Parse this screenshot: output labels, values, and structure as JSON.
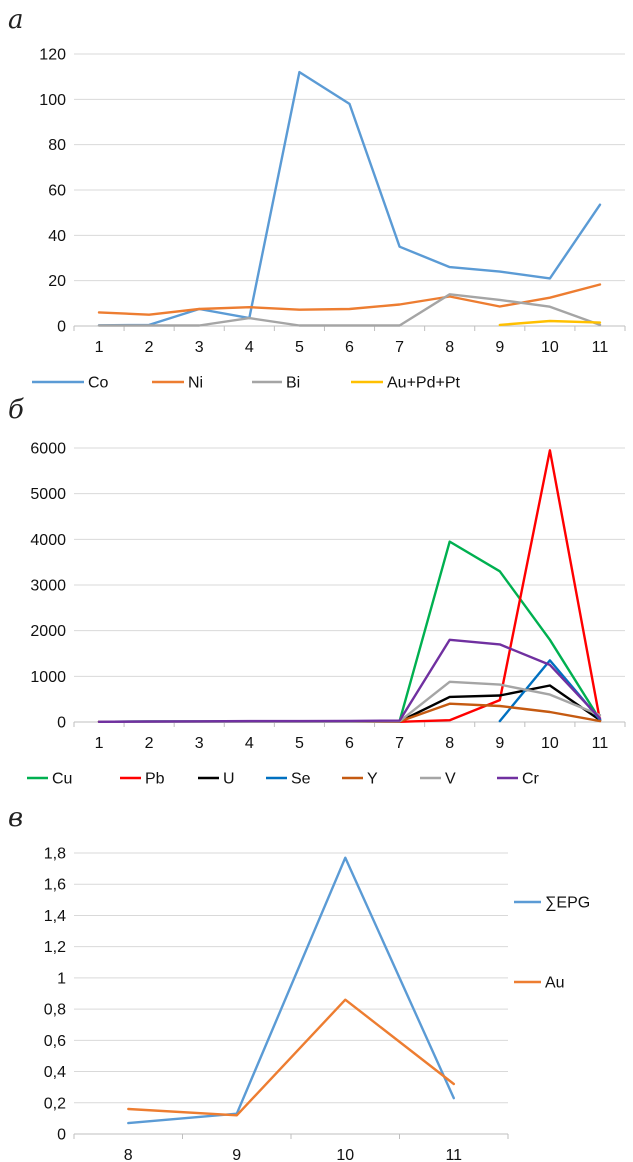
{
  "chart_data": [
    {
      "panel_label": "а",
      "type": "line",
      "categories": [
        "1",
        "2",
        "3",
        "4",
        "5",
        "6",
        "7",
        "8",
        "9",
        "10",
        "11"
      ],
      "ylim": [
        0,
        120
      ],
      "yticks": [
        "0",
        "20",
        "40",
        "60",
        "80",
        "100",
        "120"
      ],
      "grid": true,
      "legend_position": "bottom",
      "series": [
        {
          "name": "Co",
          "color": "#5B9BD5",
          "values": [
            0.3,
            0.5,
            7.5,
            3.5,
            112,
            98,
            35,
            26,
            24,
            21,
            53.5
          ]
        },
        {
          "name": "Ni",
          "color": "#ED7D31",
          "values": [
            6,
            5,
            7.5,
            8.3,
            7.2,
            7.5,
            9.5,
            13,
            8.6,
            12.5,
            18.3
          ]
        },
        {
          "name": "Bi",
          "color": "#A5A5A5",
          "values": [
            0.2,
            0.2,
            0.2,
            3.5,
            0.2,
            0.2,
            0.2,
            14,
            11.5,
            8.5,
            0.5
          ]
        },
        {
          "name": "Au+Pd+Pt",
          "color": "#FFC000",
          "values": [
            null,
            null,
            null,
            null,
            null,
            null,
            null,
            null,
            0.5,
            2.2,
            1.5
          ]
        }
      ]
    },
    {
      "panel_label": "б",
      "type": "line",
      "categories": [
        "1",
        "2",
        "3",
        "4",
        "5",
        "6",
        "7",
        "8",
        "9",
        "10",
        "11"
      ],
      "ylim": [
        0,
        6000
      ],
      "yticks": [
        "0",
        "1000",
        "2000",
        "3000",
        "4000",
        "5000",
        "6000"
      ],
      "grid": true,
      "legend_position": "bottom",
      "series": [
        {
          "name": "Cu",
          "color": "#00B050",
          "values": [
            5,
            10,
            10,
            10,
            10,
            15,
            20,
            3950,
            3300,
            1800,
            50
          ]
        },
        {
          "name": "Pb",
          "color": "#FF0000",
          "values": [
            5,
            5,
            5,
            5,
            5,
            5,
            5,
            40,
            480,
            5950,
            30
          ]
        },
        {
          "name": "U",
          "color": "#000000",
          "values": [
            5,
            5,
            5,
            5,
            5,
            5,
            10,
            550,
            580,
            800,
            40
          ]
        },
        {
          "name": "Se",
          "color": "#0070C0",
          "values": [
            null,
            null,
            null,
            null,
            null,
            null,
            null,
            null,
            20,
            1350,
            50
          ]
        },
        {
          "name": "Y",
          "color": "#C55A11",
          "values": [
            5,
            5,
            5,
            5,
            5,
            5,
            10,
            400,
            350,
            220,
            20
          ]
        },
        {
          "name": "V",
          "color": "#A5A5A5",
          "values": [
            5,
            5,
            5,
            5,
            5,
            5,
            15,
            880,
            820,
            600,
            150
          ]
        },
        {
          "name": "Cr",
          "color": "#7030A0",
          "values": [
            5,
            10,
            15,
            20,
            20,
            25,
            30,
            1800,
            1700,
            1250,
            80
          ]
        }
      ]
    },
    {
      "panel_label": "в",
      "type": "line",
      "categories": [
        "8",
        "9",
        "10",
        "11"
      ],
      "ylim": [
        0,
        1.8
      ],
      "yticks": [
        "0",
        "0,2",
        "0,4",
        "0,6",
        "0,8",
        "1",
        "1,2",
        "1,4",
        "1,6",
        "1,8"
      ],
      "grid": true,
      "legend_position": "right",
      "series": [
        {
          "name": "∑EPG",
          "color": "#5B9BD5",
          "values": [
            0.07,
            0.13,
            1.77,
            0.23
          ]
        },
        {
          "name": "Au",
          "color": "#ED7D31",
          "values": [
            0.16,
            0.12,
            0.86,
            0.32
          ]
        }
      ]
    }
  ]
}
